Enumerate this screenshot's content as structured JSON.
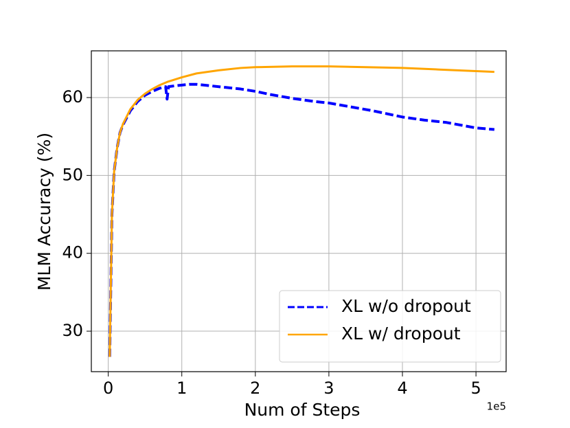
{
  "chart_data": {
    "type": "line",
    "xlabel": "Num of Steps",
    "ylabel": "MLM Accuracy (%)",
    "x_offset_label": "1e5",
    "xlim": [
      -0.23,
      5.41
    ],
    "ylim": [
      24.8,
      66.0
    ],
    "xticks": [
      0,
      1,
      2,
      3,
      4,
      5
    ],
    "yticks": [
      30,
      40,
      50,
      60
    ],
    "grid": true,
    "legend": "lower right",
    "series": [
      {
        "name": "XL w/o dropout",
        "color": "#0000ff",
        "dash": true,
        "x": [
          0.02,
          0.05,
          0.08,
          0.12,
          0.16,
          0.2,
          0.3,
          0.4,
          0.5,
          0.6,
          0.7,
          0.78,
          0.8,
          0.82,
          0.9,
          1.0,
          1.1,
          1.2,
          1.4,
          1.6,
          1.8,
          2.0,
          2.2,
          2.5,
          2.8,
          3.0,
          3.3,
          3.6,
          4.0,
          4.3,
          4.6,
          5.0,
          5.25
        ],
        "values": [
          26.7,
          45.0,
          50.5,
          53.5,
          55.5,
          56.5,
          58.3,
          59.5,
          60.3,
          60.8,
          61.2,
          61.4,
          59.8,
          61.4,
          61.5,
          61.6,
          61.7,
          61.7,
          61.5,
          61.3,
          61.1,
          60.8,
          60.4,
          59.9,
          59.5,
          59.3,
          58.8,
          58.3,
          57.5,
          57.1,
          56.8,
          56.1,
          55.9
        ]
      },
      {
        "name": "XL w/ dropout",
        "color": "#ffa500",
        "dash": false,
        "x": [
          0.02,
          0.05,
          0.08,
          0.12,
          0.16,
          0.2,
          0.3,
          0.4,
          0.5,
          0.6,
          0.7,
          0.8,
          0.9,
          1.0,
          1.2,
          1.5,
          1.8,
          2.0,
          2.5,
          3.0,
          3.5,
          4.0,
          4.5,
          5.0,
          5.25
        ],
        "values": [
          26.7,
          45.0,
          50.5,
          53.5,
          55.5,
          56.6,
          58.5,
          59.7,
          60.5,
          61.1,
          61.6,
          62.0,
          62.3,
          62.6,
          63.1,
          63.5,
          63.8,
          63.9,
          64.0,
          64.0,
          63.9,
          63.8,
          63.6,
          63.4,
          63.3
        ]
      }
    ]
  }
}
